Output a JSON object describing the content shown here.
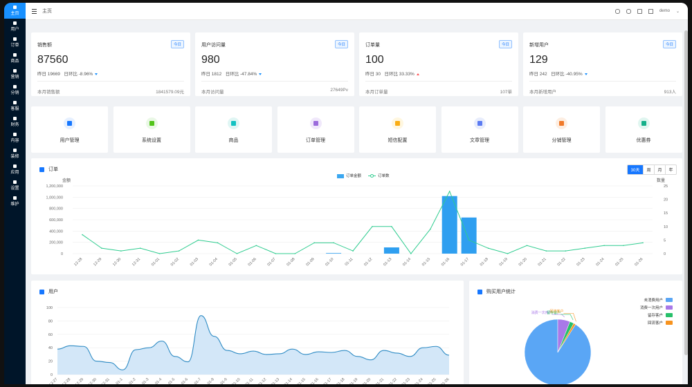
{
  "sidebar": {
    "items": [
      {
        "label": "主页",
        "active": true
      },
      {
        "label": "用户"
      },
      {
        "label": "订单"
      },
      {
        "label": "商品"
      },
      {
        "label": "营销"
      },
      {
        "label": "分销"
      },
      {
        "label": "客服"
      },
      {
        "label": "财务"
      },
      {
        "label": "内容"
      },
      {
        "label": "装修"
      },
      {
        "label": "应用"
      },
      {
        "label": "设置"
      },
      {
        "label": "维护"
      }
    ]
  },
  "header": {
    "breadcrumb": "主页",
    "user": "demo"
  },
  "stats": [
    {
      "title": "销售额",
      "tag": "今日",
      "value": "87560",
      "sub_label": "昨日 19669",
      "ratio": "日环比 -8.96%",
      "trend": "down",
      "foot_label": "本月销售额",
      "foot_value": "1841579.09元"
    },
    {
      "title": "用户访问量",
      "tag": "今日",
      "value": "980",
      "sub_label": "昨日 1812",
      "ratio": "日环比 -47.84%",
      "trend": "down",
      "foot_label": "本月访问量",
      "foot_value": "27649Pv"
    },
    {
      "title": "订单量",
      "tag": "今日",
      "value": "100",
      "sub_label": "昨日 30",
      "ratio": "日环比 33.33%",
      "trend": "up",
      "foot_label": "本月订单量",
      "foot_value": "107单"
    },
    {
      "title": "新增用户",
      "tag": "今日",
      "value": "129",
      "sub_label": "昨日 242",
      "ratio": "日环比 -40.95%",
      "trend": "down",
      "foot_label": "本月新增用户",
      "foot_value": "913人"
    }
  ],
  "quick": [
    {
      "label": "用户管理",
      "color": "#e6f0ff",
      "ic": "#1677ff"
    },
    {
      "label": "系统设置",
      "color": "#eaf8e6",
      "ic": "#52c41a"
    },
    {
      "label": "商品",
      "color": "#e0f6f4",
      "ic": "#13c2c2"
    },
    {
      "label": "订单管理",
      "color": "#f0e8fb",
      "ic": "#9b6bdc"
    },
    {
      "label": "短信配置",
      "color": "#fff7e0",
      "ic": "#faad14"
    },
    {
      "label": "文章管理",
      "color": "#e8edfc",
      "ic": "#5b7bf2"
    },
    {
      "label": "分销管理",
      "color": "#fdeee2",
      "ic": "#f07a2a"
    },
    {
      "label": "优惠券",
      "color": "#e0f6f0",
      "ic": "#14b08a"
    }
  ],
  "order_panel": {
    "title": "订单",
    "tabs": [
      "30天",
      "周",
      "月",
      "年"
    ],
    "legend_amount": "订单金额",
    "legend_count": "订单数"
  },
  "user_panel": {
    "title": "用户"
  },
  "buy_panel": {
    "title": "购买用户统计"
  },
  "chart_data": [
    {
      "type": "bar",
      "ylabel": "金额",
      "y2label": "数量",
      "ylim": [
        0,
        1200000
      ],
      "y2lim": [
        0,
        25
      ],
      "yticks": [
        "0",
        "200,000",
        "400,000",
        "600,000",
        "800,000",
        "1,000,000",
        "1,200,000"
      ],
      "y2ticks": [
        "0",
        "5",
        "10",
        "15",
        "20",
        "25"
      ],
      "categories": [
        "12-28",
        "12-29",
        "12-30",
        "12-31",
        "01-01",
        "01-02",
        "01-03",
        "01-04",
        "01-05",
        "01-06",
        "01-07",
        "01-08",
        "01-09",
        "01-10",
        "01-11",
        "01-12",
        "01-13",
        "01-14",
        "01-15",
        "01-16",
        "01-17",
        "01-18",
        "01-19",
        "01-20",
        "01-21",
        "01-22",
        "01-23",
        "01-24",
        "01-25",
        "01-26"
      ],
      "series": [
        {
          "name": "订单金额",
          "type": "bar",
          "values": [
            0,
            0,
            0,
            0,
            0,
            0,
            0,
            0,
            0,
            0,
            0,
            0,
            0,
            10000,
            0,
            0,
            110000,
            0,
            0,
            1020000,
            640000,
            0,
            0,
            0,
            0,
            0,
            0,
            0,
            0,
            0
          ]
        },
        {
          "name": "订单数",
          "type": "line",
          "axis": "right",
          "values": [
            7,
            2,
            1,
            2,
            0,
            1,
            5,
            4,
            0,
            3,
            0,
            0,
            4,
            4,
            1,
            10,
            10,
            0,
            9,
            23,
            5,
            2,
            0,
            3,
            1,
            1,
            2,
            3,
            3,
            4
          ]
        }
      ]
    },
    {
      "type": "area",
      "ylim": [
        0,
        100
      ],
      "yticks": [
        "0",
        "20",
        "40",
        "60",
        "80",
        "100"
      ],
      "categories": [
        "12-27",
        "12-28",
        "12-29",
        "12-30",
        "12-31",
        "01-1",
        "01-2",
        "01-3",
        "01-4",
        "01-5",
        "01-6",
        "01-7",
        "01-8",
        "01-9",
        "01-10",
        "01-11",
        "01-12",
        "01-13",
        "01-14",
        "01-15",
        "01-16",
        "01-17",
        "01-18",
        "01-19",
        "01-20",
        "01-21",
        "01-22",
        "01-23",
        "01-24",
        "01-25",
        "01-26"
      ],
      "values": [
        38,
        43,
        42,
        20,
        18,
        7,
        37,
        40,
        50,
        27,
        19,
        88,
        57,
        36,
        31,
        35,
        30,
        31,
        38,
        30,
        34,
        33,
        36,
        27,
        22,
        36,
        32,
        27,
        40,
        42,
        29
      ]
    },
    {
      "type": "pie",
      "labels": [
        "未消费用户",
        "消费一次用户",
        "留存客户",
        "回流客户"
      ],
      "values": [
        91,
        6,
        2,
        1
      ],
      "colors": [
        "#5aa6f5",
        "#a879e8",
        "#27c06a",
        "#f7931e"
      ]
    }
  ]
}
